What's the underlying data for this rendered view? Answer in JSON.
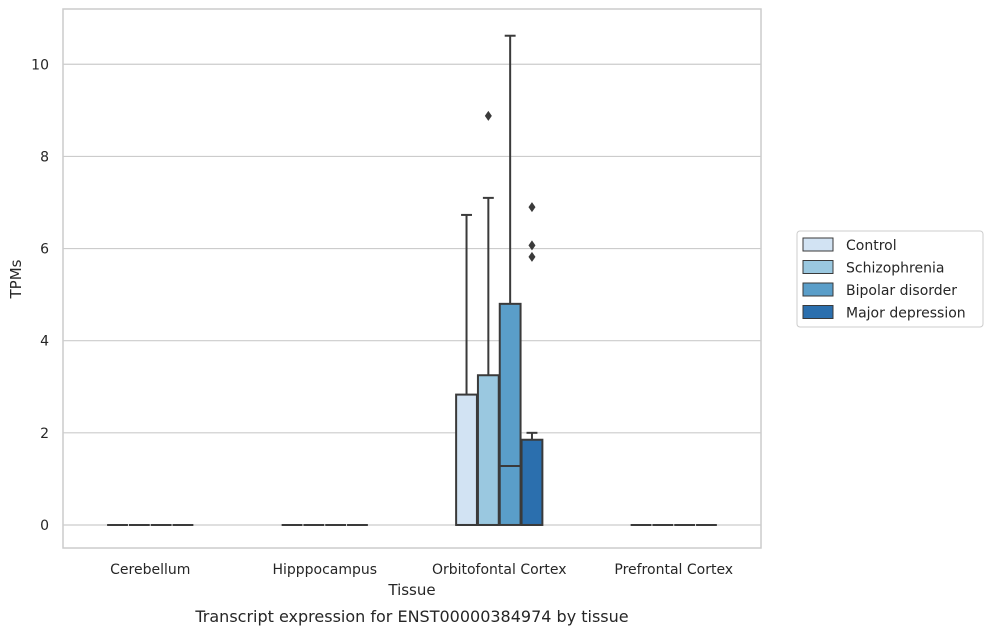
{
  "chart_data": {
    "type": "box",
    "xlabel": "Tissue",
    "ylabel": "TPMs",
    "caption": "Transcript expression for ENST00000384974 by tissue",
    "ylim": [
      -0.5,
      11.2
    ],
    "yticks": [
      0,
      2,
      4,
      6,
      8,
      10
    ],
    "grid": true,
    "legend_position": "right",
    "categories": [
      "Cerebellum",
      "Hipppocampus",
      "Orbitofontal Cortex",
      "Prefrontal Cortex"
    ],
    "series": [
      {
        "name": "Control",
        "color": "#d2e3f3",
        "boxes": [
          {
            "q1": 0,
            "median": 0,
            "q3": 0,
            "whisker_low": 0,
            "whisker_high": 0,
            "outliers": []
          },
          {
            "q1": 0,
            "median": 0,
            "q3": 0,
            "whisker_low": 0,
            "whisker_high": 0,
            "outliers": []
          },
          {
            "q1": 0,
            "median": 0,
            "q3": 2.83,
            "whisker_low": 0,
            "whisker_high": 6.73,
            "outliers": []
          },
          {
            "q1": 0,
            "median": 0,
            "q3": 0,
            "whisker_low": 0,
            "whisker_high": 0,
            "outliers": []
          }
        ]
      },
      {
        "name": "Schizophrenia",
        "color": "#9ac8e0",
        "boxes": [
          {
            "q1": 0,
            "median": 0,
            "q3": 0,
            "whisker_low": 0,
            "whisker_high": 0,
            "outliers": []
          },
          {
            "q1": 0,
            "median": 0,
            "q3": 0,
            "whisker_low": 0,
            "whisker_high": 0,
            "outliers": []
          },
          {
            "q1": 0,
            "median": 0,
            "q3": 3.25,
            "whisker_low": 0,
            "whisker_high": 7.1,
            "outliers": [
              8.88
            ]
          },
          {
            "q1": 0,
            "median": 0,
            "q3": 0,
            "whisker_low": 0,
            "whisker_high": 0,
            "outliers": []
          }
        ]
      },
      {
        "name": "Bipolar disorder",
        "color": "#5a9ec9",
        "boxes": [
          {
            "q1": 0,
            "median": 0,
            "q3": 0,
            "whisker_low": 0,
            "whisker_high": 0,
            "outliers": []
          },
          {
            "q1": 0,
            "median": 0,
            "q3": 0,
            "whisker_low": 0,
            "whisker_high": 0,
            "outliers": []
          },
          {
            "q1": 0,
            "median": 1.28,
            "q3": 4.8,
            "whisker_low": 0,
            "whisker_high": 10.62,
            "outliers": []
          },
          {
            "q1": 0,
            "median": 0,
            "q3": 0,
            "whisker_low": 0,
            "whisker_high": 0,
            "outliers": []
          }
        ]
      },
      {
        "name": "Major depression",
        "color": "#2b6fae",
        "boxes": [
          {
            "q1": 0,
            "median": 0,
            "q3": 0,
            "whisker_low": 0,
            "whisker_high": 0,
            "outliers": []
          },
          {
            "q1": 0,
            "median": 0,
            "q3": 0,
            "whisker_low": 0,
            "whisker_high": 0,
            "outliers": []
          },
          {
            "q1": 0,
            "median": 0,
            "q3": 1.85,
            "whisker_low": 0,
            "whisker_high": 2.0,
            "outliers": [
              5.82,
              6.07,
              6.9
            ]
          },
          {
            "q1": 0,
            "median": 0,
            "q3": 0,
            "whisker_low": 0,
            "whisker_high": 0,
            "outliers": []
          }
        ]
      }
    ]
  }
}
